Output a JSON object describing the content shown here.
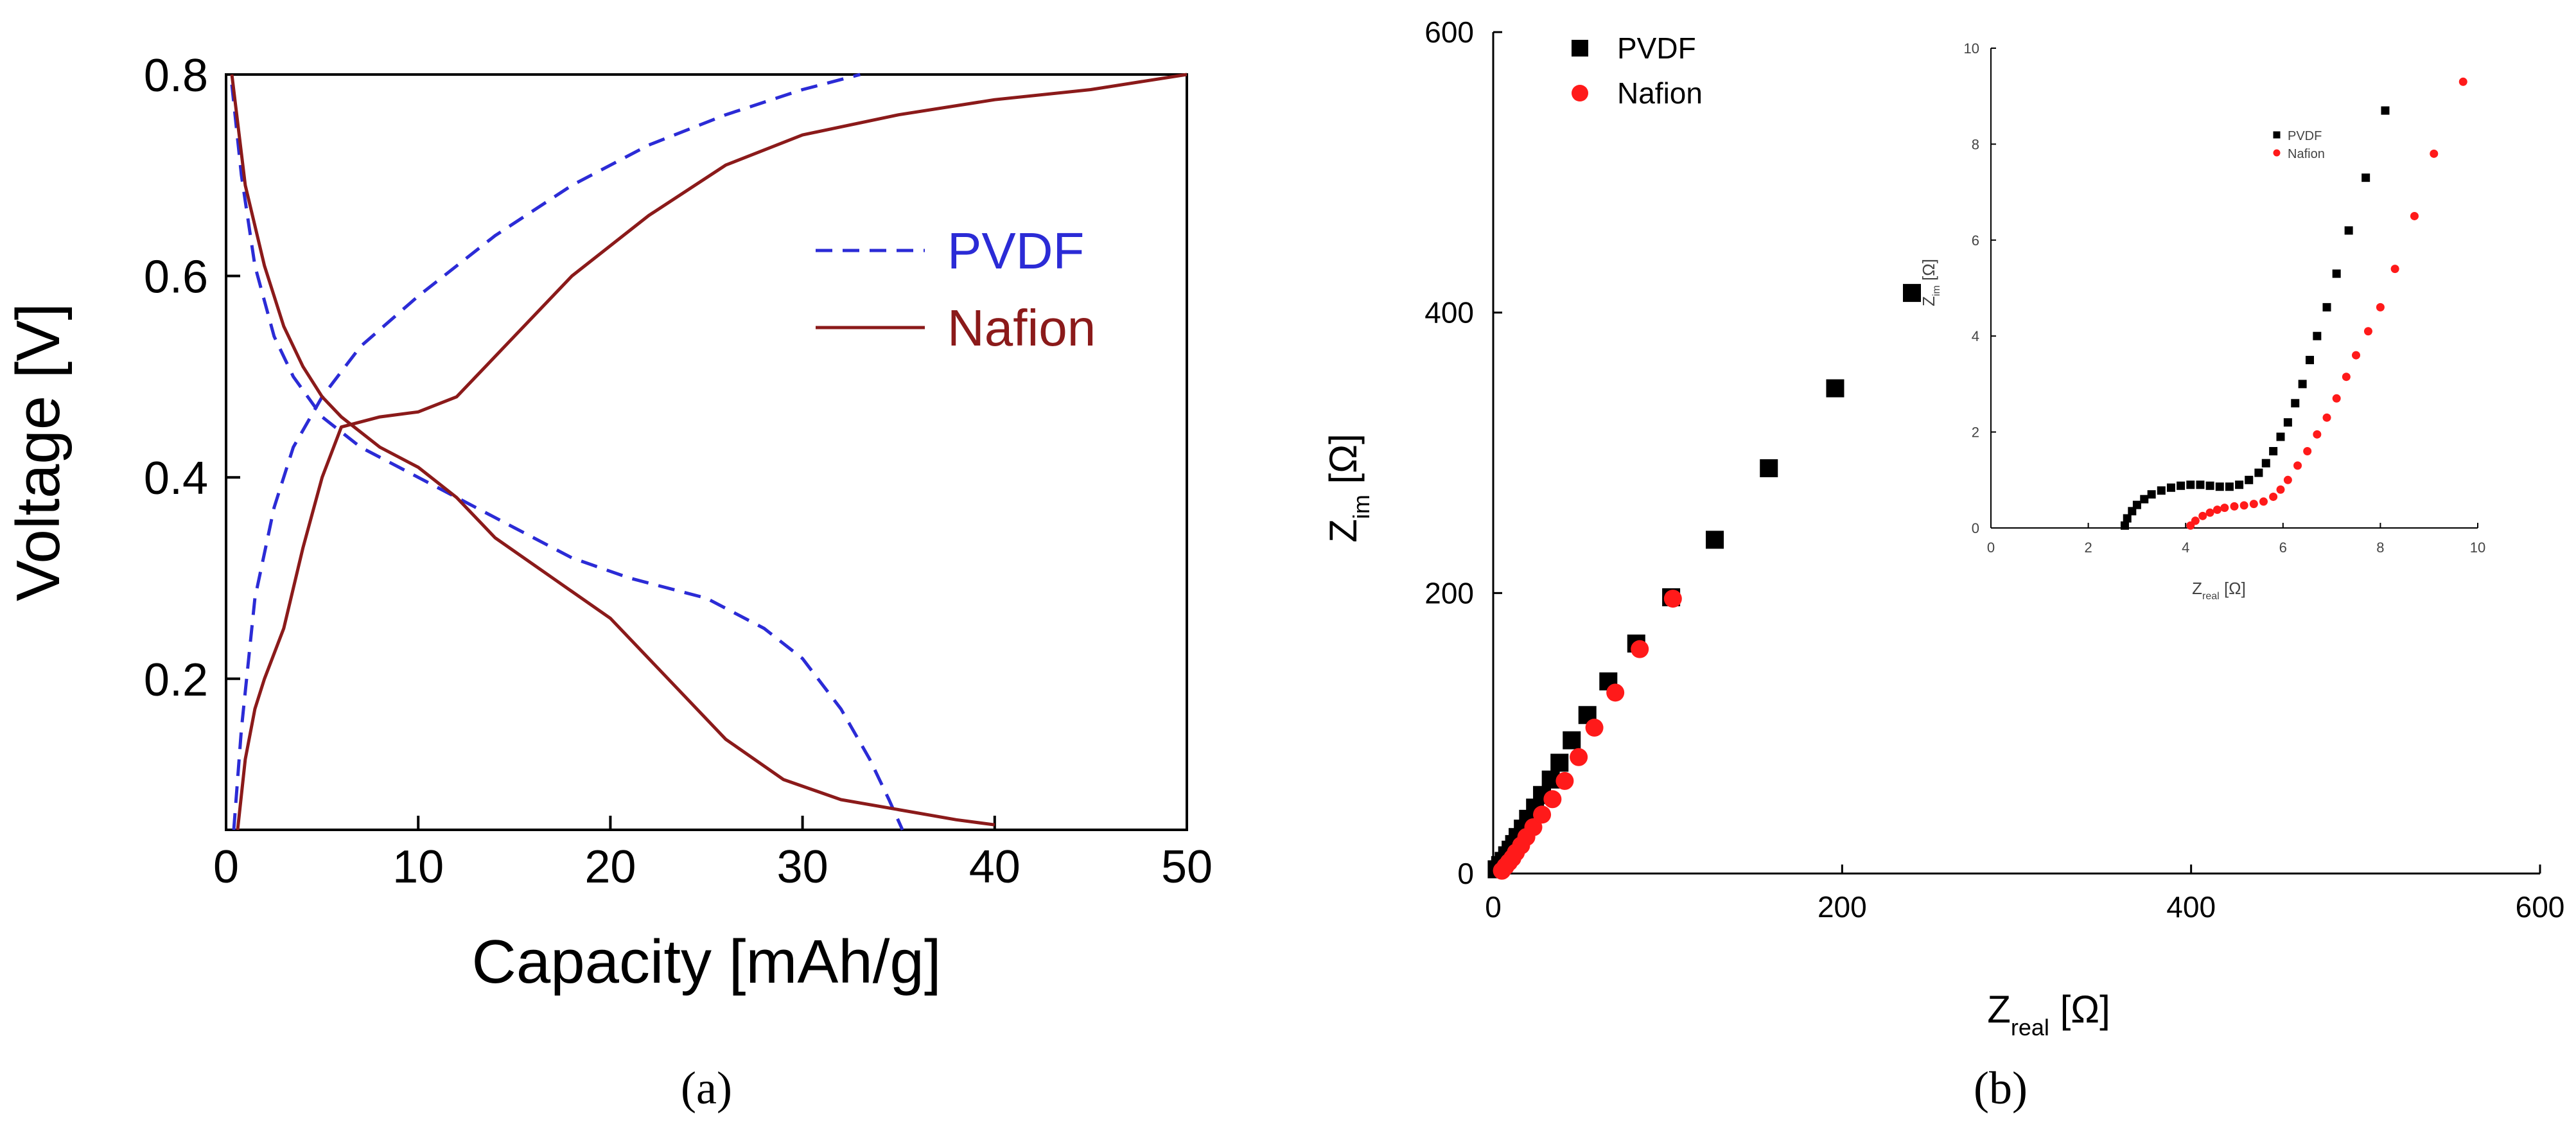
{
  "chart_data": [
    {
      "type": "line",
      "panel_label": "(a)",
      "xlabel": "Capacity [mAh/g]",
      "ylabel": "Voltage [V]",
      "xlim": [
        0,
        50
      ],
      "ylim": [
        0.05,
        0.8
      ],
      "xticks": [
        0,
        10,
        20,
        30,
        40,
        50
      ],
      "yticks": [
        0.2,
        0.4,
        0.6,
        0.8
      ],
      "ytick_labels": [
        "0.2",
        "0.4",
        "0.6",
        "0.8"
      ],
      "legend": "right",
      "series": [
        {
          "name": "PVDF",
          "color": "#2b2bd6",
          "style": "dashed",
          "branches": [
            {
              "x": [
                0.3,
                0.8,
                1.5,
                2.5,
                3.5,
                5,
                7,
                9,
                11,
                13,
                15,
                18,
                21,
                25,
                28,
                30,
                32,
                33.5,
                34.5,
                35.2
              ],
              "y": [
                0.79,
                0.7,
                0.61,
                0.54,
                0.5,
                0.46,
                0.43,
                0.41,
                0.39,
                0.37,
                0.35,
                0.32,
                0.3,
                0.28,
                0.25,
                0.22,
                0.17,
                0.12,
                0.08,
                0.05
              ]
            },
            {
              "x": [
                0.4,
                0.8,
                1.5,
                2.5,
                3.5,
                5,
                7,
                10,
                14,
                18,
                22,
                26,
                30,
                33
              ],
              "y": [
                0.05,
                0.15,
                0.28,
                0.37,
                0.43,
                0.48,
                0.53,
                0.58,
                0.64,
                0.69,
                0.73,
                0.76,
                0.785,
                0.8
              ]
            }
          ]
        },
        {
          "name": "Nafion",
          "color": "#8b1a1a",
          "style": "solid",
          "branches": [
            {
              "x": [
                0.3,
                1,
                2,
                3,
                4,
                5,
                6,
                8,
                10,
                12,
                14,
                17,
                20,
                23,
                26,
                29,
                32,
                35,
                38,
                40
              ],
              "y": [
                0.8,
                0.69,
                0.61,
                0.55,
                0.51,
                0.48,
                0.46,
                0.43,
                0.41,
                0.38,
                0.34,
                0.3,
                0.26,
                0.2,
                0.14,
                0.1,
                0.08,
                0.07,
                0.06,
                0.055
              ]
            },
            {
              "x": [
                0.6,
                1,
                1.5,
                2,
                3,
                4,
                5,
                6,
                8,
                10,
                12,
                13,
                15,
                18,
                22,
                26,
                30,
                35,
                40,
                45,
                50
              ],
              "y": [
                0.05,
                0.12,
                0.17,
                0.2,
                0.25,
                0.33,
                0.4,
                0.45,
                0.46,
                0.465,
                0.48,
                0.5,
                0.54,
                0.6,
                0.66,
                0.71,
                0.74,
                0.76,
                0.775,
                0.785,
                0.8
              ]
            }
          ]
        }
      ]
    },
    {
      "type": "scatter",
      "panel_label": "(b)",
      "xlabel": "Z",
      "xlabel_sub": "real",
      "xlabel_unit": " [Ω]",
      "ylabel": "Z",
      "ylabel_sub": "im",
      "ylabel_unit": " [Ω]",
      "xlim": [
        0,
        600
      ],
      "ylim": [
        0,
        600
      ],
      "xticks": [
        0,
        200,
        400,
        600
      ],
      "yticks": [
        0,
        200,
        400,
        600
      ],
      "legend": "top-left",
      "series": [
        {
          "name": "PVDF",
          "color": "#000000",
          "marker": "square",
          "x": [
            2,
            4,
            6,
            8,
            10,
            12,
            14,
            17,
            20,
            24,
            28,
            33,
            38,
            45,
            54,
            66,
            82,
            102,
            127,
            158,
            196,
            240
          ],
          "y": [
            3,
            6,
            9,
            13,
            17,
            21,
            26,
            32,
            39,
            47,
            56,
            67,
            79,
            95,
            113,
            137,
            164,
            197,
            238,
            289,
            346,
            414
          ]
        },
        {
          "name": "Nafion",
          "color": "#ff1a1a",
          "marker": "circle",
          "x": [
            5,
            7,
            9,
            11,
            13,
            16,
            19,
            23,
            28,
            34,
            41,
            49,
            58,
            70,
            84,
            103
          ],
          "y": [
            2,
            5,
            8,
            11,
            15,
            20,
            26,
            33,
            42,
            53,
            66,
            83,
            104,
            129,
            160,
            196
          ]
        }
      ],
      "inset": {
        "type": "scatter",
        "xlabel": "Z",
        "xlabel_sub": "real",
        "xlabel_unit": " [Ω]",
        "ylabel": "Z",
        "ylabel_sub": "im",
        "ylabel_unit": " [Ω]",
        "xlim": [
          0,
          10
        ],
        "ylim": [
          0,
          10
        ],
        "xticks": [
          0,
          2,
          4,
          6,
          8,
          10
        ],
        "yticks": [
          0,
          2,
          4,
          6,
          8,
          10
        ],
        "legend": "center",
        "series": [
          {
            "name": "PVDF",
            "color": "#000000",
            "marker": "square",
            "x": [
              2.75,
              2.8,
              2.9,
              3.0,
              3.15,
              3.3,
              3.5,
              3.7,
              3.9,
              4.1,
              4.3,
              4.5,
              4.7,
              4.9,
              5.1,
              5.3,
              5.5,
              5.65,
              5.8,
              5.95,
              6.1,
              6.25,
              6.4,
              6.55,
              6.7,
              6.9,
              7.1,
              7.35,
              7.7,
              8.1
            ],
            "y": [
              0.05,
              0.2,
              0.35,
              0.48,
              0.6,
              0.7,
              0.78,
              0.84,
              0.88,
              0.9,
              0.9,
              0.88,
              0.86,
              0.86,
              0.9,
              1.0,
              1.15,
              1.35,
              1.6,
              1.9,
              2.2,
              2.6,
              3.0,
              3.5,
              4.0,
              4.6,
              5.3,
              6.2,
              7.3,
              8.7
            ]
          },
          {
            "name": "Nafion",
            "color": "#ff1a1a",
            "marker": "circle",
            "x": [
              4.1,
              4.2,
              4.35,
              4.5,
              4.65,
              4.8,
              5.0,
              5.2,
              5.4,
              5.6,
              5.8,
              5.95,
              6.1,
              6.3,
              6.5,
              6.7,
              6.9,
              7.1,
              7.3,
              7.5,
              7.75,
              8.0,
              8.3,
              8.7,
              9.1,
              9.7
            ],
            "y": [
              0.05,
              0.15,
              0.25,
              0.32,
              0.38,
              0.42,
              0.45,
              0.47,
              0.5,
              0.55,
              0.65,
              0.8,
              1.0,
              1.3,
              1.6,
              1.95,
              2.3,
              2.7,
              3.15,
              3.6,
              4.1,
              4.6,
              5.4,
              6.5,
              7.8,
              9.3
            ]
          }
        ]
      }
    }
  ]
}
